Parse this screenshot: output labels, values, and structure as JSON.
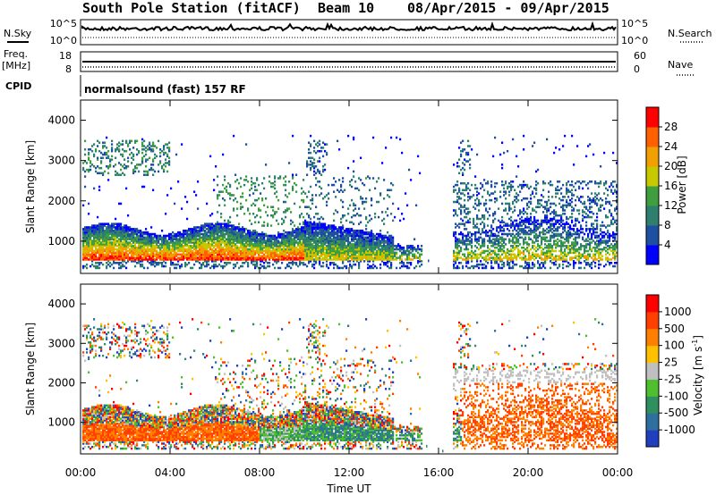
{
  "title": "South Pole Station (fitACF)",
  "beam": "Beam 10",
  "date_range": "08/Apr/2015 - 09/Apr/2015",
  "header": {
    "nsky_label": "N.Sky",
    "nsearch_label": "N.Search",
    "freq_label": "Freq.",
    "freq_unit": "[MHz]",
    "nave_label": "Nave",
    "cpid_label": "CPID",
    "cpid_value": "normalsound (fast) 157 RF",
    "nsky_ticks": [
      "10^5",
      "10^0"
    ],
    "nsearch_ticks": [
      "10^5",
      "10^0"
    ],
    "freq_ticks": [
      "18",
      "8"
    ],
    "nave_ticks": [
      "60",
      "0"
    ]
  },
  "chart_data": [
    {
      "type": "heatmap",
      "name": "power",
      "xlabel": "",
      "ylabel": "Slant Range [km]",
      "ylim": [
        200,
        4500
      ],
      "xlim_hours": [
        0,
        24
      ],
      "yticks": [
        "1000",
        "2000",
        "3000",
        "4000"
      ],
      "colorbar": {
        "label": "Power [dB]",
        "ticks": [
          "4",
          "8",
          "12",
          "16",
          "20",
          "24",
          "28"
        ],
        "colors": [
          "#0000ff",
          "#1f4fa0",
          "#2f7f6f",
          "#3f9f3f",
          "#c8c800",
          "#f0a000",
          "#ff6000",
          "#ff0000"
        ]
      }
    },
    {
      "type": "heatmap",
      "name": "velocity",
      "xlabel": "Time UT",
      "ylabel": "Slant Range [km]",
      "ylim": [
        200,
        4500
      ],
      "xlim_hours": [
        0,
        24
      ],
      "xticks": [
        "00:00",
        "04:00",
        "08:00",
        "12:00",
        "16:00",
        "20:00",
        "00:00"
      ],
      "yticks": [
        "1000",
        "2000",
        "3000",
        "4000"
      ],
      "colorbar": {
        "label": "Velocity [m s",
        "label_sup": "-1",
        "label_end": "]",
        "ticks": [
          "1000",
          "500",
          "100",
          "25",
          "-25",
          "-100",
          "-500",
          "-1000"
        ],
        "colors": [
          "#1f3fbf",
          "#2f6fa0",
          "#2f8f5f",
          "#4fbf2f",
          "#c0c0c0",
          "#ffc000",
          "#ff8000",
          "#ff4000",
          "#ff0000"
        ]
      }
    }
  ]
}
